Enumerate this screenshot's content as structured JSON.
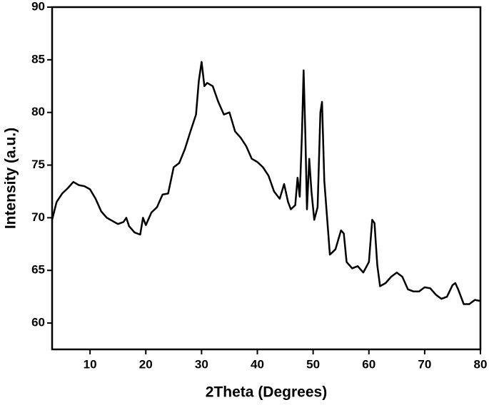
{
  "chart_data": {
    "type": "line",
    "x_label": "2Theta (Degrees)",
    "y_label": "Intensity (a.u.)",
    "x": [
      3.2,
      4,
      5,
      6,
      7,
      8,
      9,
      10,
      11,
      12,
      13,
      14,
      15,
      16,
      16.5,
      17,
      18,
      19,
      19.5,
      20,
      21,
      22,
      23,
      24,
      25,
      26,
      27,
      28,
      29,
      29.5,
      30,
      30.5,
      31,
      32,
      33,
      34,
      35,
      36,
      37,
      38,
      39,
      40,
      41,
      42,
      43,
      44,
      44.8,
      45.5,
      46,
      46.8,
      47.2,
      47.6,
      48,
      48.3,
      48.6,
      48.9,
      49.3,
      49.7,
      50.2,
      50.8,
      51.3,
      51.6,
      52,
      52.5,
      53,
      54,
      55,
      55.5,
      56,
      57,
      58,
      59,
      60,
      60.6,
      61,
      61.5,
      62,
      63,
      64,
      65,
      66,
      67,
      68,
      69,
      70,
      71,
      72,
      73,
      74,
      75,
      75.5,
      76,
      77,
      78,
      79,
      80
    ],
    "series": [
      {
        "color": "#000000",
        "values": [
          69.8,
          71.5,
          72.3,
          72.8,
          73.4,
          73.1,
          73.0,
          72.7,
          71.8,
          70.6,
          70.0,
          69.7,
          69.4,
          69.6,
          70.0,
          69.2,
          68.6,
          68.4,
          70.0,
          69.3,
          70.5,
          71.0,
          72.2,
          72.3,
          74.8,
          75.2,
          76.5,
          78.2,
          79.8,
          83.0,
          84.8,
          82.5,
          82.8,
          82.5,
          81.0,
          79.8,
          80.0,
          78.2,
          77.6,
          76.8,
          75.6,
          75.3,
          74.8,
          74.0,
          72.5,
          71.8,
          73.2,
          71.5,
          70.8,
          71.2,
          73.8,
          72.0,
          78.0,
          84.0,
          78.0,
          70.8,
          75.6,
          72.5,
          69.8,
          71.0,
          80.0,
          81.0,
          73.5,
          70.0,
          66.5,
          67.0,
          68.8,
          68.5,
          65.8,
          65.2,
          65.4,
          64.8,
          65.8,
          69.8,
          69.5,
          65.5,
          63.5,
          63.8,
          64.4,
          64.8,
          64.4,
          63.2,
          63.0,
          63.0,
          63.4,
          63.3,
          62.7,
          62.3,
          62.5,
          63.6,
          63.8,
          63.2,
          61.8,
          61.8,
          62.2,
          62.1
        ]
      }
    ],
    "xlim": [
      3.2,
      80
    ],
    "ylim": [
      57.5,
      90
    ],
    "xticks": [
      10,
      20,
      30,
      40,
      50,
      60,
      70,
      80
    ],
    "yticks": [
      60,
      65,
      70,
      75,
      80,
      85,
      90
    ]
  }
}
